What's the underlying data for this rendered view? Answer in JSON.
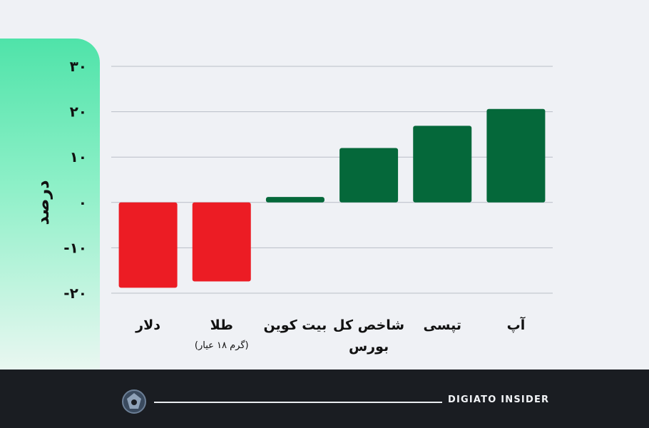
{
  "chart_data": {
    "type": "bar",
    "ylabel": "درصد",
    "ylim": [
      -20,
      30
    ],
    "yticks": [
      {
        "value": 30,
        "label": "۳۰"
      },
      {
        "value": 20,
        "label": "۲۰"
      },
      {
        "value": 10,
        "label": "۱۰"
      },
      {
        "value": 0,
        "label": "۰"
      },
      {
        "value": -10,
        "label": "-۱۰"
      },
      {
        "value": -20,
        "label": "-۲۰"
      }
    ],
    "grid": true,
    "categories": [
      {
        "lines": [
          "دلار"
        ],
        "sub": ""
      },
      {
        "lines": [
          "طلا"
        ],
        "sub": "(گرم ۱۸ عیار)"
      },
      {
        "lines": [
          "بیت کوین"
        ],
        "sub": ""
      },
      {
        "lines": [
          "شاخص کل",
          "بورس"
        ],
        "sub": ""
      },
      {
        "lines": [
          "تپسی"
        ],
        "sub": ""
      },
      {
        "lines": [
          "آپ"
        ],
        "sub": ""
      }
    ],
    "values": [
      -18.8,
      -17.4,
      1.2,
      12.0,
      16.9,
      20.6
    ],
    "colors": {
      "positive": "#05683a",
      "negative": "#ec1c24"
    }
  },
  "footer": {
    "brand": "DIGIATO INSIDER",
    "logo_icon": "digiato-logo-icon"
  }
}
